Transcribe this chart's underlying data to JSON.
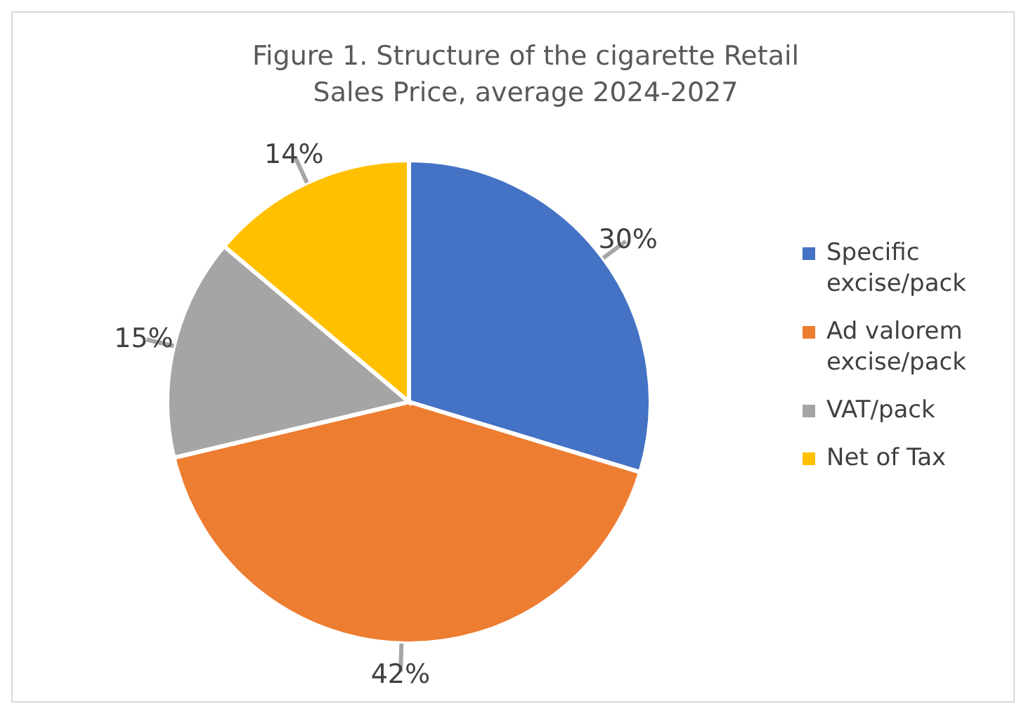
{
  "chart_data": {
    "type": "pie",
    "title": "Figure 1. Structure of the cigarette Retail Sales Price,  average 2024-2027",
    "categories": [
      "Specific excise/pack",
      "Ad valorem excise/pack",
      "VAT/pack",
      "Net of Tax"
    ],
    "values": [
      30,
      42,
      15,
      14
    ],
    "value_labels": [
      "30%",
      "42%",
      "15%",
      "14%"
    ],
    "colors": [
      "#4472c4",
      "#ed7d31",
      "#a5a5a5",
      "#ffc000"
    ],
    "legend": "right"
  }
}
